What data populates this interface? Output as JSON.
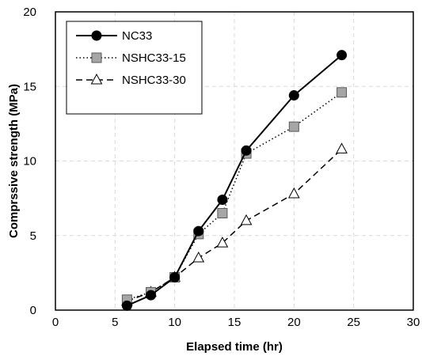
{
  "chart_data": {
    "type": "line",
    "title": "",
    "xlabel": "Elapsed time (hr)",
    "ylabel": "Comprssive strength (MPa)",
    "xlim": [
      0,
      30
    ],
    "ylim": [
      0,
      20
    ],
    "xticks": [
      "0",
      "5",
      "10",
      "15",
      "20",
      "25",
      "30"
    ],
    "yticks": [
      "0",
      "5",
      "10",
      "15",
      "20"
    ],
    "grid": true,
    "legend_position": "top-left",
    "series": [
      {
        "name": "NC33",
        "style": "solid",
        "marker": "circle",
        "marker_color": "#000000",
        "x": [
          6,
          8,
          10,
          12,
          14,
          16,
          20,
          24
        ],
        "y": [
          0.3,
          1.0,
          2.2,
          5.3,
          7.4,
          10.7,
          14.4,
          17.1
        ]
      },
      {
        "name": "NSHC33-15",
        "style": "dotted",
        "marker": "square",
        "marker_color": "#a6a6a6",
        "x": [
          6,
          8,
          10,
          12,
          14,
          16,
          20,
          24
        ],
        "y": [
          0.7,
          1.2,
          2.2,
          5.1,
          6.5,
          10.5,
          12.3,
          14.6
        ]
      },
      {
        "name": "NSHC33-30",
        "style": "dashed",
        "marker": "triangle",
        "marker_color": "#ffffff",
        "x": [
          6,
          8,
          10,
          12,
          14,
          16,
          20,
          24
        ],
        "y": [
          0.6,
          1.2,
          2.2,
          3.5,
          4.5,
          6.0,
          7.8,
          10.8
        ]
      }
    ]
  }
}
